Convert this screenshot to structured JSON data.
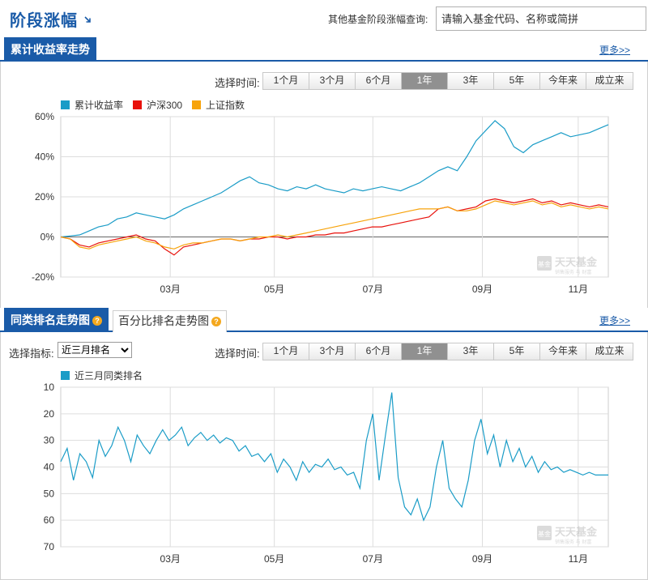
{
  "header": {
    "title": "阶段涨幅",
    "query_label": "其他基金阶段涨幅查询:",
    "query_placeholder": "请输入基金代码、名称或简拼"
  },
  "section1": {
    "tab_label": "累计收益率走势",
    "more_label": "更多>>",
    "time_label": "选择时间:",
    "ranges": [
      "1个月",
      "3个月",
      "6个月",
      "1年",
      "3年",
      "5年",
      "今年来",
      "成立来"
    ],
    "active_range": "1年",
    "legend": [
      {
        "name": "累计收益率",
        "color": "#1a9cc7"
      },
      {
        "name": "沪深300",
        "color": "#e8110b"
      },
      {
        "name": "上证指数",
        "color": "#f7a30b"
      }
    ]
  },
  "section2": {
    "tab_label": "同类排名走势图",
    "tab2_label": "百分比排名走势图",
    "more_label": "更多>>",
    "indicator_label": "选择指标:",
    "indicator_value": "近三月排名",
    "time_label": "选择时间:",
    "ranges": [
      "1个月",
      "3个月",
      "6个月",
      "1年",
      "3年",
      "5年",
      "今年来",
      "成立来"
    ],
    "active_range": "1年",
    "legend": [
      {
        "name": "近三月同类排名",
        "color": "#1a9cc7"
      }
    ]
  },
  "watermark": {
    "brand": "天天基金",
    "sub": "销售服务 与 财富",
    "badge": "基金"
  },
  "chart_data": [
    {
      "type": "line",
      "x_tick_labels": [
        "03月",
        "05月",
        "07月",
        "09月",
        "11月"
      ],
      "y_tick_labels": [
        "60%",
        "40%",
        "20%",
        "0%",
        "-20%"
      ],
      "ylim": [
        -20,
        60
      ],
      "grid": true,
      "legend_position": "top-left",
      "series": [
        {
          "name": "累计收益率",
          "color": "#1a9cc7",
          "values": [
            0,
            0.5,
            1,
            3,
            5,
            6,
            9,
            10,
            12,
            11,
            10,
            9,
            11,
            14,
            16,
            18,
            20,
            22,
            25,
            28,
            30,
            27,
            26,
            24,
            23,
            25,
            24,
            26,
            24,
            23,
            22,
            24,
            23,
            24,
            25,
            24,
            23,
            25,
            27,
            30,
            33,
            35,
            33,
            40,
            48,
            53,
            58,
            54,
            45,
            42,
            46,
            48,
            50,
            52,
            50,
            51,
            52,
            54,
            56
          ]
        },
        {
          "name": "沪深300",
          "color": "#e8110b",
          "values": [
            0,
            -1,
            -4,
            -5,
            -3,
            -2,
            -1,
            0,
            1,
            -1,
            -2,
            -6,
            -9,
            -5,
            -4,
            -3,
            -2,
            -1,
            -1,
            -2,
            -1,
            -1,
            0,
            0,
            -1,
            0,
            0,
            1,
            1,
            2,
            2,
            3,
            4,
            5,
            5,
            6,
            7,
            8,
            9,
            10,
            14,
            15,
            13,
            14,
            15,
            18,
            19,
            18,
            17,
            18,
            19,
            17,
            18,
            16,
            17,
            16,
            15,
            16,
            15
          ]
        },
        {
          "name": "上证指数",
          "color": "#f7a30b",
          "values": [
            0,
            -1,
            -5,
            -6,
            -4,
            -3,
            -2,
            -1,
            0,
            -2,
            -3,
            -5,
            -6,
            -4,
            -3,
            -3,
            -2,
            -1,
            -1,
            -2,
            -1,
            0,
            0,
            1,
            0,
            1,
            2,
            3,
            4,
            5,
            6,
            7,
            8,
            9,
            10,
            11,
            12,
            13,
            14,
            14,
            14,
            15,
            13,
            13,
            14,
            16,
            18,
            17,
            16,
            17,
            18,
            16,
            17,
            15,
            16,
            15,
            14,
            15,
            14
          ]
        }
      ]
    },
    {
      "type": "line",
      "x_tick_labels": [
        "03月",
        "05月",
        "07月",
        "09月",
        "11月"
      ],
      "y_tick_labels": [
        "10",
        "20",
        "30",
        "40",
        "50",
        "60",
        "70"
      ],
      "ylim": [
        10,
        70
      ],
      "y_inverted": true,
      "grid": true,
      "legend_position": "top-left",
      "series": [
        {
          "name": "近三月同类排名",
          "color": "#1a9cc7",
          "values": [
            38,
            33,
            45,
            35,
            38,
            44,
            30,
            36,
            32,
            25,
            30,
            38,
            28,
            32,
            35,
            30,
            26,
            30,
            28,
            25,
            32,
            29,
            27,
            30,
            28,
            31,
            29,
            30,
            34,
            32,
            36,
            35,
            38,
            35,
            42,
            37,
            40,
            45,
            38,
            42,
            39,
            40,
            37,
            41,
            40,
            43,
            42,
            48,
            30,
            20,
            45,
            28,
            12,
            44,
            55,
            58,
            52,
            60,
            55,
            40,
            30,
            48,
            52,
            55,
            45,
            30,
            22,
            35,
            28,
            40,
            30,
            38,
            33,
            40,
            36,
            42,
            38,
            41,
            40,
            42,
            41,
            42,
            43,
            42,
            43,
            43,
            43
          ]
        }
      ]
    }
  ]
}
